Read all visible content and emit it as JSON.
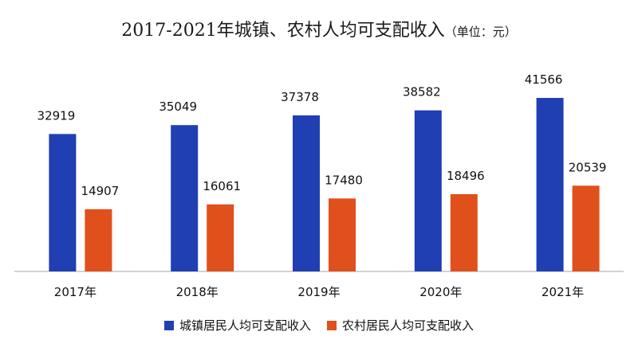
{
  "title": "2017-2021年城镇、农村人均可支配收入",
  "title_unit": "（单位：元）",
  "colors": {
    "urban": "#1f3fb3",
    "rural": "#e0501c",
    "axis": "#a6a6a6",
    "text": "#111111"
  },
  "chart_data": {
    "type": "bar",
    "title": "2017-2021年城镇、农村人均可支配收入（单位：元）",
    "categories": [
      "2017年",
      "2018年",
      "2019年",
      "2020年",
      "2021年"
    ],
    "series": [
      {
        "name": "城镇居民人均可支配收入",
        "values": [
          32919,
          35049,
          37378,
          38582,
          41566
        ]
      },
      {
        "name": "农村居民人均可支配收入",
        "values": [
          14907,
          16061,
          17480,
          18496,
          20539
        ]
      }
    ],
    "ylim": [
      0,
      50000
    ],
    "grid": false,
    "legend": "bottom",
    "data_labels": true
  }
}
